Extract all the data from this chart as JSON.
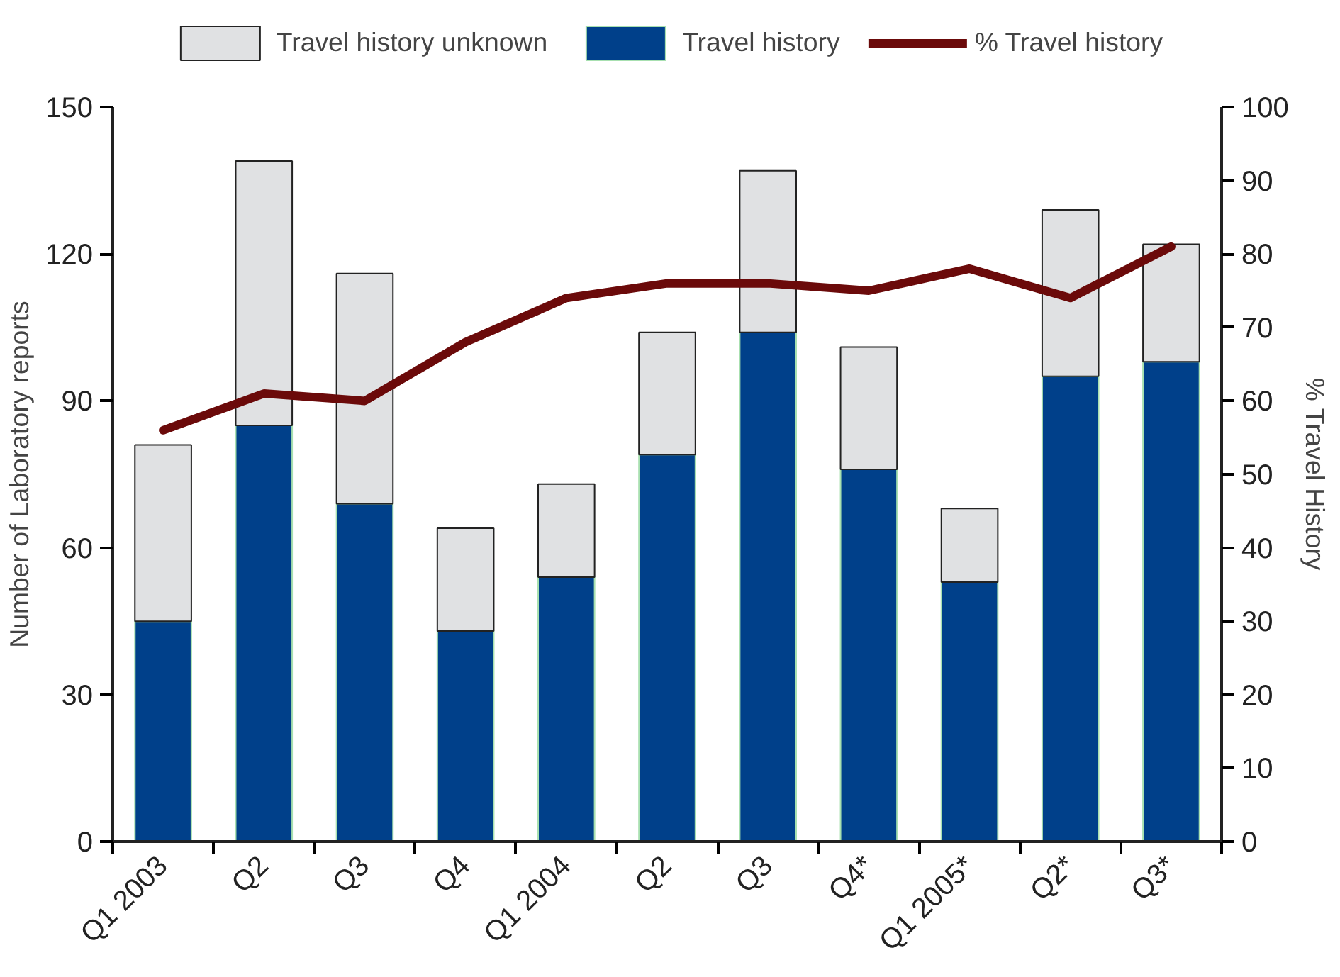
{
  "chart_data": {
    "type": "bar",
    "stacked": true,
    "ylabel": "Number of Laboratory reports",
    "y2label": "% Travel History",
    "categories": [
      "Q1 2003",
      "Q2",
      "Q3",
      "Q4",
      "Q1 2004",
      "Q2",
      "Q3",
      "Q4*",
      "Q1 2005*",
      "Q2*",
      "Q3*"
    ],
    "series": [
      {
        "name": "Travel history",
        "color": "#00408a",
        "values": [
          45,
          85,
          69,
          43,
          54,
          79,
          104,
          76,
          53,
          95,
          98
        ]
      },
      {
        "name": "Travel history unknown",
        "color": "#e0e1e3",
        "values": [
          36,
          54,
          47,
          21,
          19,
          25,
          33,
          25,
          15,
          34,
          24
        ]
      },
      {
        "name": "% Travel history",
        "type": "line",
        "axis": "y2",
        "color": "#6b0a0a",
        "values": [
          56,
          61,
          60,
          68,
          74,
          76,
          76,
          75,
          78,
          74,
          81
        ]
      }
    ],
    "ylim": [
      0,
      150
    ],
    "yticks": [
      0,
      30,
      60,
      90,
      120,
      150
    ],
    "y2lim": [
      0,
      100
    ],
    "y2ticks": [
      0,
      10,
      20,
      30,
      40,
      50,
      60,
      70,
      80,
      90,
      100
    ],
    "legend": "top",
    "grid": false
  }
}
